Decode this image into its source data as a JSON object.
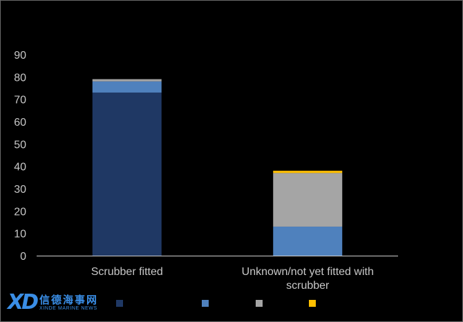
{
  "chart_data": {
    "type": "bar",
    "stacked": true,
    "categories": [
      "Scrubber fitted",
      "Unknown/not yet fitted with scrubber"
    ],
    "series": [
      {
        "color": "#1f3864",
        "values": [
          73,
          0
        ]
      },
      {
        "color": "#4f81bd",
        "values": [
          5,
          13
        ]
      },
      {
        "color": "#a5a5a5",
        "values": [
          1,
          24
        ]
      },
      {
        "color": "#ffc000",
        "values": [
          0,
          1
        ]
      }
    ],
    "yticks": [
      0,
      10,
      20,
      30,
      40,
      50,
      60,
      70,
      80,
      90
    ],
    "ylim": [
      0,
      90
    ],
    "xlabel": "",
    "ylabel": "",
    "legend_position": "bottom"
  },
  "watermark": {
    "mark": "XD",
    "chinese": "信德海事网",
    "english": "XINDE MARINE NEWS"
  }
}
